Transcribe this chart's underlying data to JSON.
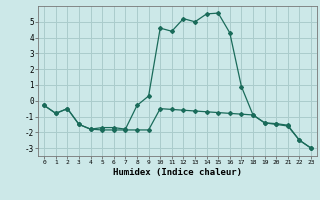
{
  "xlabel": "Humidex (Indice chaleur)",
  "xlim": [
    -0.5,
    23.5
  ],
  "ylim": [
    -3.5,
    6.0
  ],
  "xticks": [
    0,
    1,
    2,
    3,
    4,
    5,
    6,
    7,
    8,
    9,
    10,
    11,
    12,
    13,
    14,
    15,
    16,
    17,
    18,
    19,
    20,
    21,
    22,
    23
  ],
  "yticks": [
    -3,
    -2,
    -1,
    0,
    1,
    2,
    3,
    4,
    5
  ],
  "background_color": "#cce8e8",
  "grid_color": "#aacccc",
  "line_color": "#1a6b5a",
  "line1_x": [
    0,
    1,
    2,
    3,
    4,
    5,
    6,
    7,
    8,
    9,
    10,
    11,
    12,
    13,
    14,
    15,
    16,
    17,
    18,
    19,
    20,
    21,
    22,
    23
  ],
  "line1_y": [
    -0.3,
    -0.8,
    -0.5,
    -1.5,
    -1.8,
    -1.7,
    -1.7,
    -1.8,
    -0.3,
    0.3,
    4.6,
    4.4,
    5.2,
    5.0,
    5.5,
    5.55,
    4.3,
    0.9,
    -0.9,
    -1.4,
    -1.5,
    -1.6,
    -2.5,
    -3.0
  ],
  "line2_x": [
    0,
    1,
    2,
    3,
    4,
    5,
    6,
    7,
    8,
    9,
    10,
    11,
    12,
    13,
    14,
    15,
    16,
    17,
    18,
    19,
    20,
    21,
    22,
    23
  ],
  "line2_y": [
    -0.3,
    -0.8,
    -0.5,
    -1.5,
    -1.8,
    -1.85,
    -1.85,
    -1.85,
    -1.85,
    -1.85,
    -0.5,
    -0.55,
    -0.6,
    -0.65,
    -0.7,
    -0.75,
    -0.8,
    -0.85,
    -0.9,
    -1.4,
    -1.45,
    -1.55,
    -2.5,
    -3.0
  ]
}
